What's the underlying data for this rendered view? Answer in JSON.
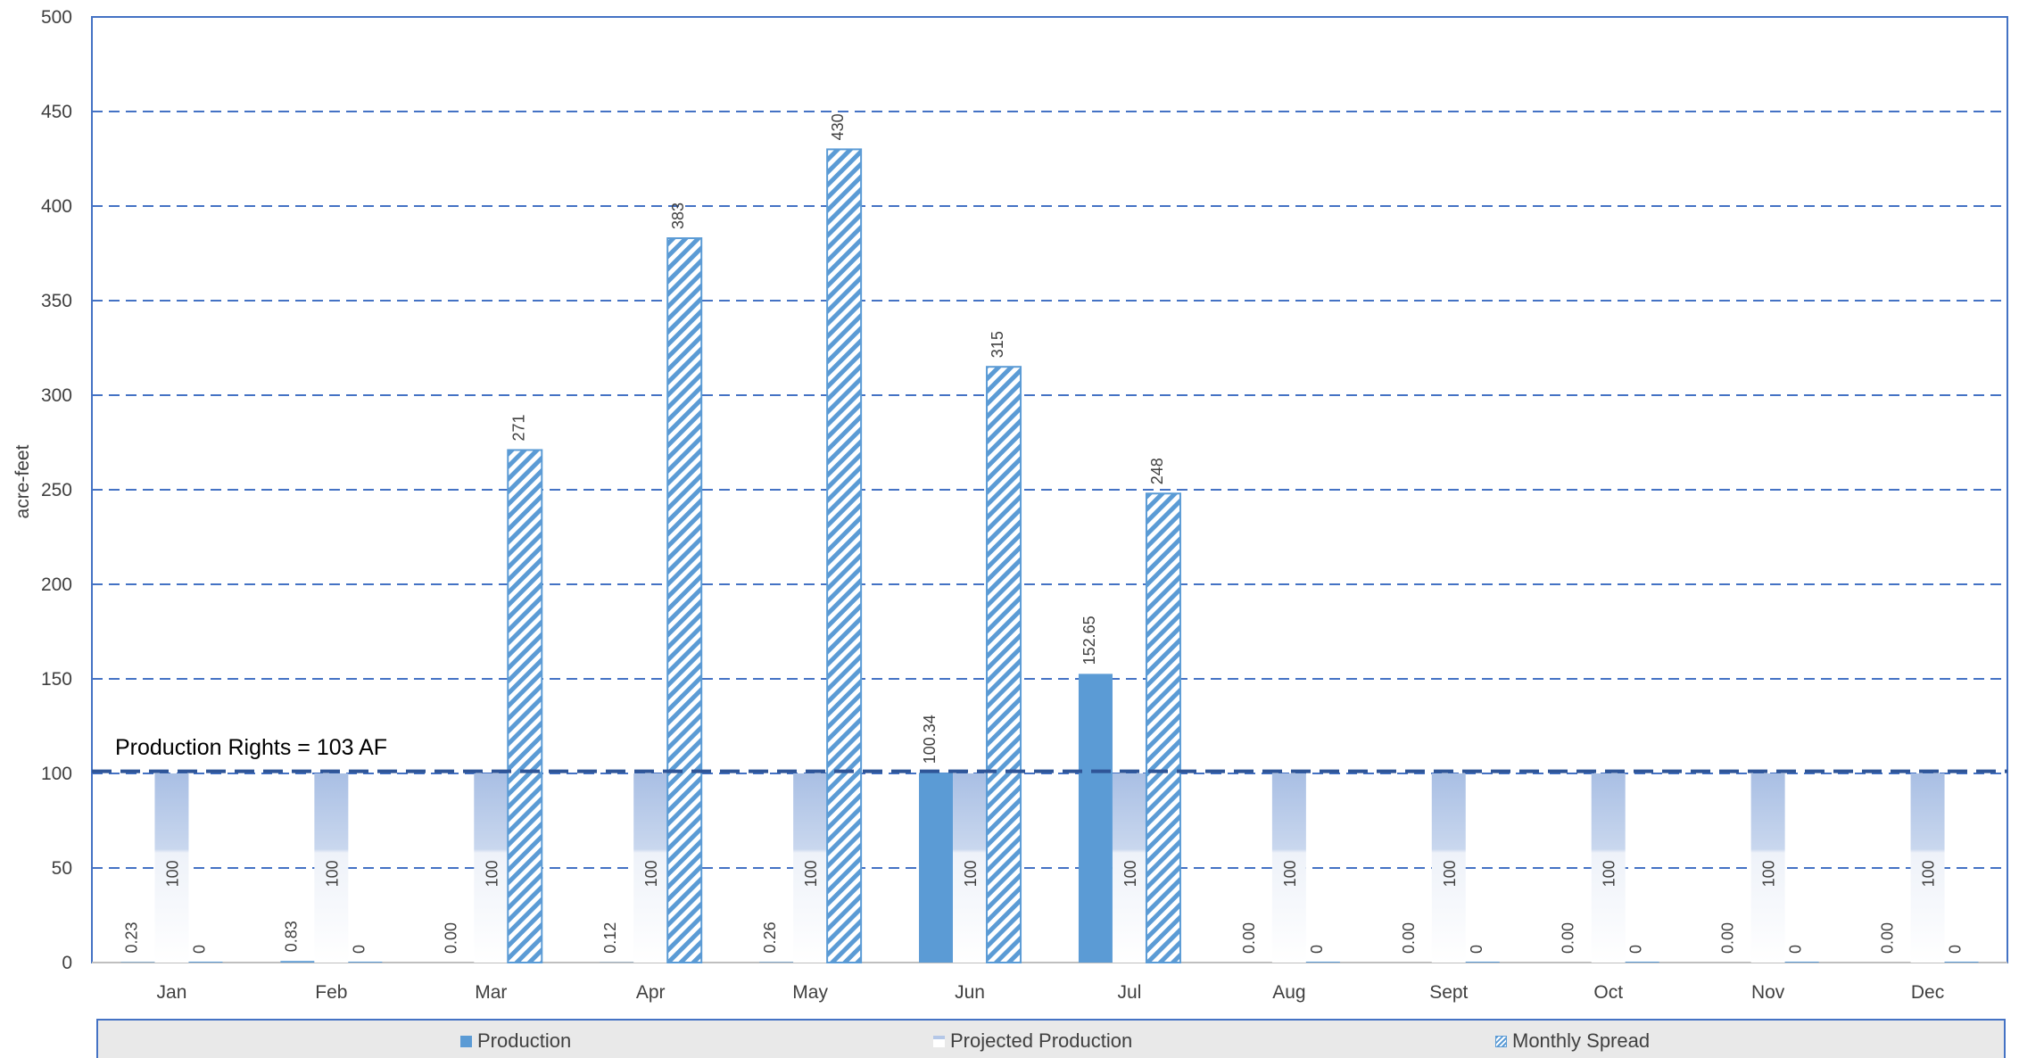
{
  "chart_data": {
    "type": "bar",
    "ylabel": "acre-feet",
    "ylim": [
      0,
      500
    ],
    "yticks": [
      "0",
      "50",
      "100",
      "150",
      "200",
      "250",
      "300",
      "350",
      "400",
      "450",
      "500"
    ],
    "categories": [
      "Jan",
      "Feb",
      "Mar",
      "Apr",
      "May",
      "Jun",
      "Jul",
      "Aug",
      "Sept",
      "Oct",
      "Nov",
      "Dec"
    ],
    "series": [
      {
        "name": "Production",
        "values": [
          0.23,
          0.83,
          0.0,
          0.12,
          0.26,
          100.34,
          152.65,
          0.0,
          0.0,
          0.0,
          0.0,
          0.0
        ],
        "labels": [
          "0.23",
          "0.83",
          "0.00",
          "0.12",
          "0.26",
          "100.34",
          "152.65",
          "0.00",
          "0.00",
          "0.00",
          "0.00",
          "0.00"
        ],
        "color": "#5b9bd5"
      },
      {
        "name": "Projected Production",
        "values": [
          100,
          100,
          100,
          100,
          100,
          100,
          100,
          100,
          100,
          100,
          100,
          100
        ],
        "labels": [
          "100",
          "100",
          "100",
          "100",
          "100",
          "100",
          "100",
          "100",
          "100",
          "100",
          "100",
          "100"
        ],
        "color": "#b4c7e7"
      },
      {
        "name": "Monthly Spread",
        "values": [
          0,
          0,
          271,
          383,
          430,
          315,
          248,
          0,
          0,
          0,
          0,
          0
        ],
        "labels": [
          "0",
          "0",
          "271",
          "383",
          "430",
          "315",
          "248",
          "0",
          "0",
          "0",
          "0",
          "0"
        ],
        "color": "#5b9bd5"
      }
    ],
    "reference_line": {
      "value": 103,
      "label": "Production Rights = 103 AF"
    },
    "grid": true,
    "legend_position": "bottom",
    "grid_color": "#4472c4"
  }
}
